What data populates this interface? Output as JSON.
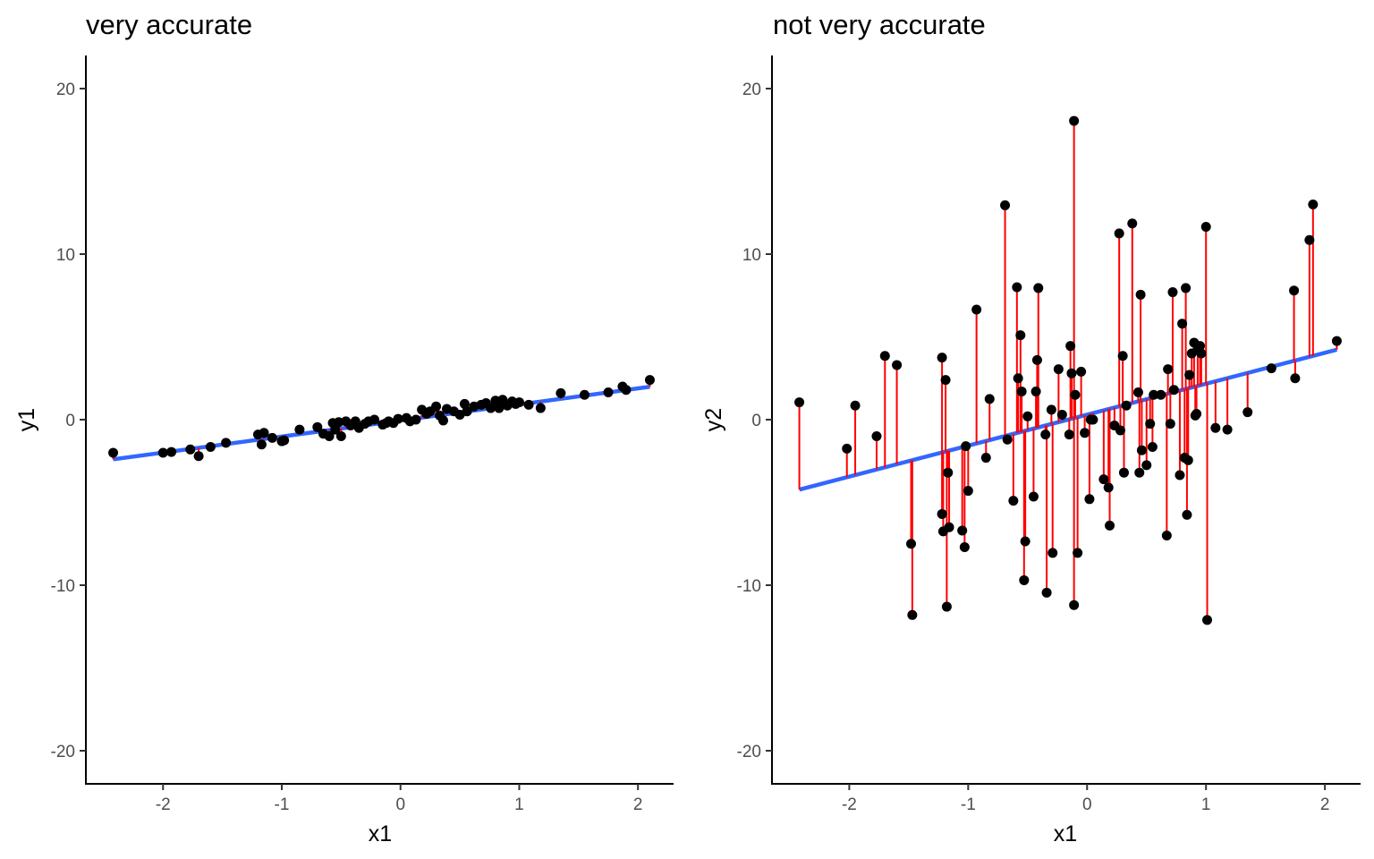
{
  "chart_data": [
    {
      "type": "scatter",
      "title": "very accurate",
      "xlabel": "x1",
      "ylabel": "y1",
      "xlim": [
        -2.65,
        2.3
      ],
      "ylim": [
        -22,
        22
      ],
      "xticks": [
        -2,
        -1,
        0,
        1,
        2
      ],
      "yticks": [
        -20,
        -10,
        0,
        10,
        20
      ],
      "xtick_labels": [
        "-2",
        "-1",
        "0",
        "1",
        "2"
      ],
      "ytick_labels": [
        "-20",
        "-10",
        "0",
        "10",
        "20"
      ],
      "grid": false,
      "legend": "none",
      "fit": {
        "intercept": -0.05,
        "slope": 0.97
      },
      "x": [
        -2.42,
        -2.0,
        -1.93,
        -1.77,
        -1.7,
        -1.6,
        -1.47,
        -1.2,
        -1.17,
        -1.15,
        -1.08,
        -1.0,
        -0.98,
        -0.85,
        -0.7,
        -0.65,
        -0.6,
        -0.57,
        -0.55,
        -0.52,
        -0.5,
        -0.46,
        -0.42,
        -0.38,
        -0.35,
        -0.3,
        -0.27,
        -0.22,
        -0.15,
        -0.12,
        -0.1,
        -0.06,
        -0.02,
        0.05,
        0.08,
        0.13,
        0.18,
        0.22,
        0.25,
        0.3,
        0.33,
        0.36,
        0.39,
        0.45,
        0.5,
        0.54,
        0.56,
        0.62,
        0.68,
        0.72,
        0.76,
        0.8,
        0.83,
        0.86,
        0.9,
        0.94,
        0.97,
        1.0,
        1.08,
        1.18,
        1.35,
        1.55,
        1.75,
        1.87,
        1.9,
        2.1
      ],
      "y": [
        -2.0,
        -2.0,
        -1.95,
        -1.8,
        -2.2,
        -1.65,
        -1.4,
        -0.9,
        -1.5,
        -0.8,
        -1.1,
        -1.3,
        -1.25,
        -0.6,
        -0.45,
        -0.85,
        -1.0,
        -0.2,
        -0.6,
        -0.15,
        -1.0,
        -0.1,
        -0.35,
        -0.1,
        -0.5,
        -0.25,
        -0.1,
        0.0,
        -0.3,
        -0.2,
        -0.1,
        -0.2,
        0.05,
        0.1,
        -0.1,
        0.0,
        0.6,
        0.35,
        0.5,
        0.8,
        0.25,
        -0.05,
        0.65,
        0.5,
        0.3,
        0.95,
        0.5,
        0.8,
        0.9,
        1.0,
        0.7,
        1.15,
        0.7,
        1.2,
        0.85,
        1.1,
        0.95,
        1.05,
        0.9,
        0.7,
        1.6,
        1.5,
        1.65,
        2.0,
        1.8,
        2.4
      ]
    },
    {
      "type": "scatter",
      "title": "not very accurate",
      "xlabel": "x1",
      "ylabel": "y2",
      "xlim": [
        -2.65,
        2.3
      ],
      "ylim": [
        -22,
        22
      ],
      "xticks": [
        -2,
        -1,
        0,
        1,
        2
      ],
      "yticks": [
        -20,
        -10,
        0,
        10,
        20
      ],
      "xtick_labels": [
        "-2",
        "-1",
        "0",
        "1",
        "2"
      ],
      "ytick_labels": [
        "-20",
        "-10",
        "0",
        "10",
        "20"
      ],
      "grid": false,
      "legend": "none",
      "fit": {
        "intercept": 0.3,
        "slope": 1.87
      },
      "x": [
        -2.42,
        -2.02,
        -1.95,
        -1.77,
        -1.7,
        -1.6,
        -1.48,
        -1.47,
        -1.22,
        -1.22,
        -1.21,
        -1.19,
        -1.18,
        -1.17,
        -1.16,
        -1.05,
        -1.03,
        -1.02,
        -1.0,
        -0.93,
        -0.85,
        -0.82,
        -0.69,
        -0.67,
        -0.62,
        -0.59,
        -0.58,
        -0.56,
        -0.55,
        -0.53,
        -0.52,
        -0.5,
        -0.45,
        -0.43,
        -0.42,
        -0.41,
        -0.35,
        -0.34,
        -0.3,
        -0.29,
        -0.24,
        -0.21,
        -0.15,
        -0.14,
        -0.13,
        -0.11,
        -0.11,
        -0.1,
        -0.08,
        -0.05,
        -0.02,
        0.02,
        0.03,
        0.05,
        0.14,
        0.18,
        0.19,
        0.23,
        0.27,
        0.28,
        0.3,
        0.31,
        0.33,
        0.38,
        0.43,
        0.44,
        0.45,
        0.46,
        0.5,
        0.53,
        0.55,
        0.56,
        0.62,
        0.67,
        0.68,
        0.7,
        0.72,
        0.73,
        0.78,
        0.8,
        0.82,
        0.83,
        0.84,
        0.85,
        0.86,
        0.88,
        0.9,
        0.91,
        0.92,
        0.93,
        0.95,
        0.96,
        1.0,
        1.01,
        1.08,
        1.18,
        1.35,
        1.55,
        1.74,
        1.75,
        1.87,
        1.9,
        2.1
      ],
      "y": [
        1.05,
        -1.75,
        0.85,
        -1.0,
        3.85,
        3.3,
        -7.5,
        -11.8,
        3.75,
        -5.7,
        -6.75,
        2.4,
        -11.3,
        -3.2,
        -6.5,
        -6.7,
        -7.7,
        -1.6,
        -4.3,
        6.65,
        -2.3,
        1.25,
        12.95,
        -1.2,
        -4.9,
        8.0,
        2.5,
        5.1,
        1.7,
        -9.7,
        -7.35,
        0.2,
        -4.65,
        1.7,
        3.6,
        7.95,
        -0.9,
        -10.45,
        0.6,
        -8.05,
        3.05,
        0.3,
        -0.9,
        4.45,
        2.8,
        -11.2,
        18.05,
        1.5,
        -8.05,
        2.9,
        -0.8,
        -4.8,
        0.0,
        0.0,
        -3.6,
        -4.1,
        -6.4,
        -0.35,
        11.25,
        -0.65,
        3.85,
        -3.2,
        0.85,
        11.85,
        1.65,
        -3.2,
        7.55,
        -1.85,
        -2.75,
        -0.25,
        -1.65,
        1.5,
        1.5,
        -7.0,
        3.05,
        -0.25,
        7.7,
        1.8,
        -3.35,
        5.8,
        -2.3,
        7.95,
        -5.75,
        -2.45,
        2.7,
        4.0,
        4.65,
        0.25,
        0.35,
        4.25,
        4.45,
        4.0,
        11.65,
        -12.1,
        -0.5,
        -0.6,
        0.45,
        3.1,
        7.8,
        2.5,
        10.85,
        13.0,
        4.75
      ]
    }
  ]
}
